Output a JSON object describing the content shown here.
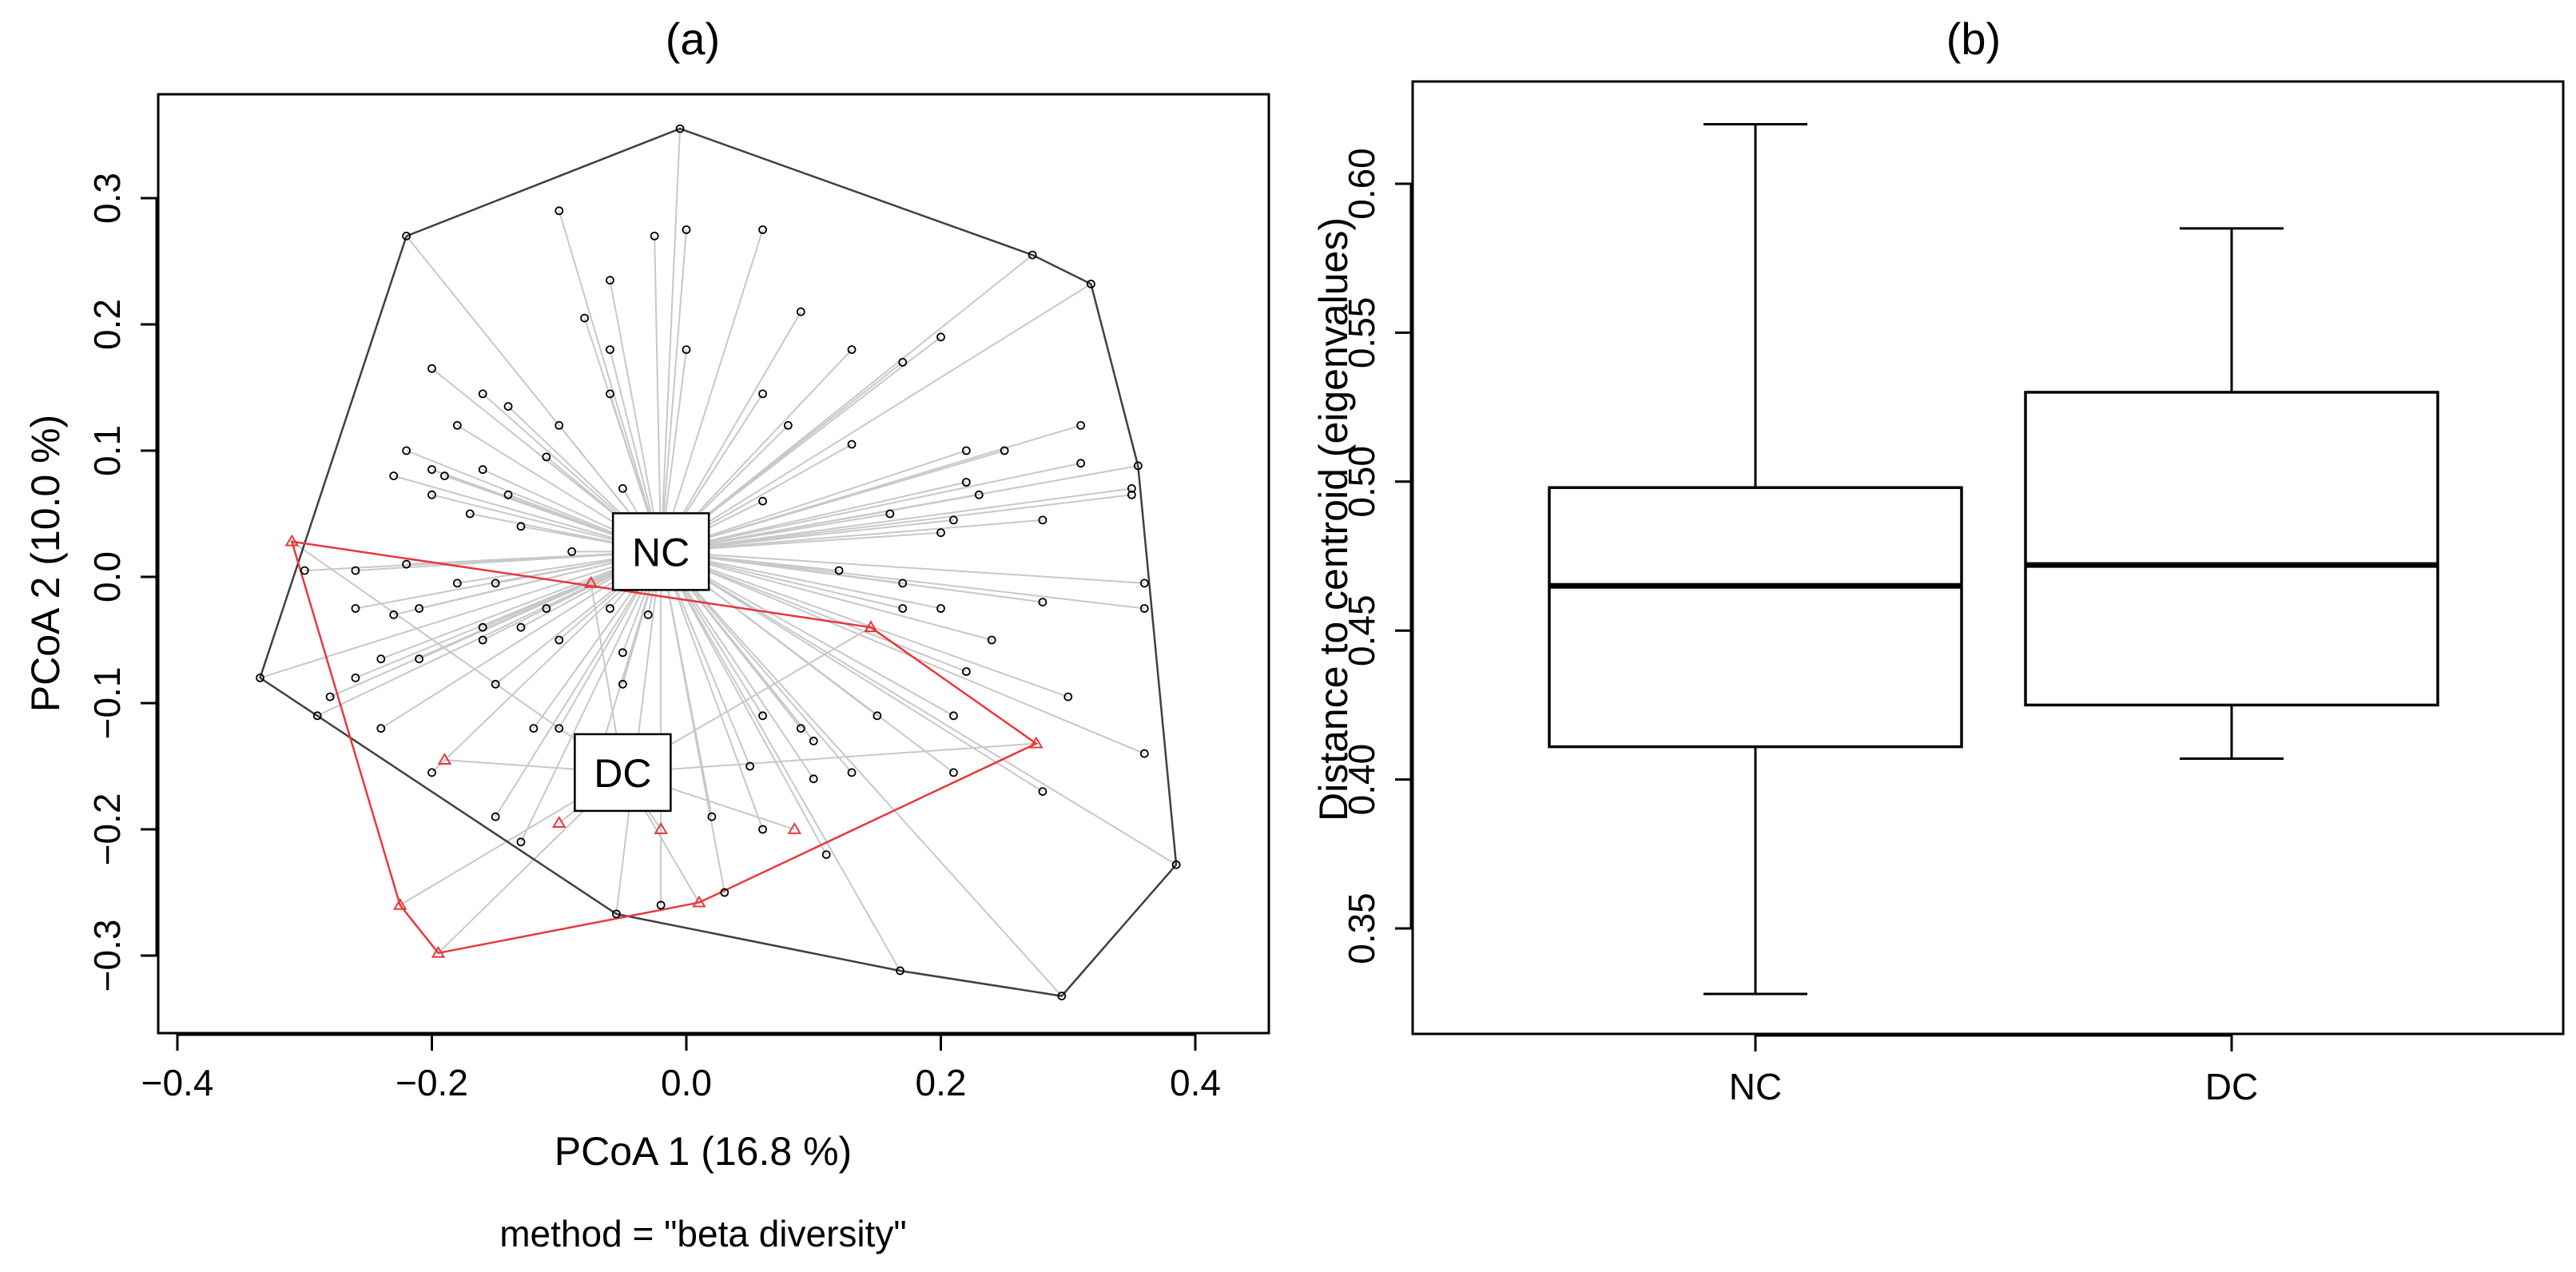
{
  "chart_data": [
    {
      "type": "scatter",
      "panel": "(a)",
      "xlabel": "PCoA 1 (16.8 %)",
      "ylabel": "PCoA 2  (10.0 %)",
      "subtitle": "method = \"beta diversity\"",
      "xlim": [
        -0.4,
        0.4
      ],
      "ylim": [
        -0.33,
        0.35
      ],
      "xticks": [
        "-0.4",
        "-0.2",
        "0.0",
        "0.2",
        "0.4"
      ],
      "xtick_values": [
        -0.4,
        -0.2,
        0.0,
        0.2,
        0.4
      ],
      "yticks": [
        "-0.3",
        "-0.2",
        "-0.1",
        "0.0",
        "0.1",
        "0.2",
        "0.3"
      ],
      "ytick_values": [
        -0.3,
        -0.2,
        -0.1,
        0.0,
        0.1,
        0.2,
        0.3
      ],
      "groups": [
        {
          "name": "NC",
          "label": "NC",
          "color": "#000000",
          "marker": "circle",
          "centroid": [
            -0.02,
            0.02
          ],
          "hull": [
            [
              -0.005,
              0.355
            ],
            [
              0.272,
              0.255
            ],
            [
              0.318,
              0.232
            ],
            [
              0.355,
              0.088
            ],
            [
              0.385,
              -0.228
            ],
            [
              0.295,
              -0.332
            ],
            [
              0.168,
              -0.312
            ],
            [
              -0.055,
              -0.267
            ],
            [
              -0.335,
              -0.08
            ],
            [
              -0.22,
              0.27
            ]
          ],
          "points": [
            [
              -0.005,
              0.355
            ],
            [
              0.272,
              0.255
            ],
            [
              0.318,
              0.232
            ],
            [
              0.355,
              0.088
            ],
            [
              0.385,
              -0.228
            ],
            [
              0.295,
              -0.332
            ],
            [
              0.168,
              -0.312
            ],
            [
              -0.055,
              -0.267
            ],
            [
              -0.335,
              -0.08
            ],
            [
              -0.22,
              0.27
            ],
            [
              -0.1,
              0.29
            ],
            [
              -0.06,
              0.235
            ],
            [
              -0.025,
              0.27
            ],
            [
              0.0,
              0.275
            ],
            [
              0.06,
              0.275
            ],
            [
              -0.08,
              0.205
            ],
            [
              0.09,
              0.21
            ],
            [
              -0.06,
              0.18
            ],
            [
              0.0,
              0.18
            ],
            [
              0.13,
              0.18
            ],
            [
              0.2,
              0.19
            ],
            [
              0.17,
              0.17
            ],
            [
              -0.2,
              0.165
            ],
            [
              -0.16,
              0.145
            ],
            [
              -0.06,
              0.145
            ],
            [
              0.06,
              0.145
            ],
            [
              -0.14,
              0.135
            ],
            [
              -0.18,
              0.12
            ],
            [
              -0.1,
              0.12
            ],
            [
              0.08,
              0.12
            ],
            [
              -0.22,
              0.1
            ],
            [
              -0.2,
              0.085
            ],
            [
              -0.16,
              0.085
            ],
            [
              -0.11,
              0.095
            ],
            [
              0.13,
              0.105
            ],
            [
              0.22,
              0.1
            ],
            [
              0.25,
              0.1
            ],
            [
              0.31,
              0.12
            ],
            [
              0.31,
              0.09
            ],
            [
              0.35,
              0.07
            ],
            [
              -0.23,
              0.08
            ],
            [
              -0.19,
              0.08
            ],
            [
              -0.14,
              0.065
            ],
            [
              -0.05,
              0.07
            ],
            [
              0.06,
              0.06
            ],
            [
              0.22,
              0.075
            ],
            [
              0.21,
              0.045
            ],
            [
              0.23,
              0.065
            ],
            [
              -0.2,
              0.065
            ],
            [
              -0.17,
              0.05
            ],
            [
              -0.13,
              0.04
            ],
            [
              -0.09,
              0.02
            ],
            [
              0.16,
              0.05
            ],
            [
              0.2,
              0.035
            ],
            [
              0.28,
              0.045
            ],
            [
              0.35,
              0.065
            ],
            [
              -0.3,
              0.005
            ],
            [
              -0.26,
              0.005
            ],
            [
              -0.22,
              0.01
            ],
            [
              -0.18,
              -0.005
            ],
            [
              -0.15,
              -0.005
            ],
            [
              -0.21,
              -0.025
            ],
            [
              -0.16,
              -0.04
            ],
            [
              -0.13,
              -0.04
            ],
            [
              -0.11,
              -0.025
            ],
            [
              -0.06,
              -0.025
            ],
            [
              -0.03,
              -0.03
            ],
            [
              0.12,
              0.005
            ],
            [
              0.17,
              -0.005
            ],
            [
              0.2,
              -0.025
            ],
            [
              0.28,
              -0.02
            ],
            [
              -0.26,
              -0.025
            ],
            [
              -0.23,
              -0.03
            ],
            [
              -0.28,
              -0.095
            ],
            [
              -0.26,
              -0.08
            ],
            [
              -0.24,
              -0.065
            ],
            [
              -0.21,
              -0.065
            ],
            [
              -0.16,
              -0.05
            ],
            [
              -0.1,
              -0.05
            ],
            [
              -0.05,
              -0.06
            ],
            [
              0.17,
              -0.025
            ],
            [
              0.24,
              -0.05
            ],
            [
              0.22,
              -0.075
            ],
            [
              0.36,
              -0.005
            ],
            [
              0.36,
              -0.025
            ],
            [
              -0.29,
              -0.11
            ],
            [
              -0.24,
              -0.12
            ],
            [
              -0.15,
              -0.085
            ],
            [
              -0.1,
              -0.12
            ],
            [
              -0.05,
              -0.085
            ],
            [
              0.06,
              -0.11
            ],
            [
              0.09,
              -0.12
            ],
            [
              0.1,
              -0.13
            ],
            [
              0.15,
              -0.11
            ],
            [
              0.21,
              -0.11
            ],
            [
              0.3,
              -0.095
            ],
            [
              0.36,
              -0.14
            ],
            [
              -0.2,
              -0.155
            ],
            [
              -0.12,
              -0.12
            ],
            [
              0.05,
              -0.15
            ],
            [
              0.1,
              -0.16
            ],
            [
              0.13,
              -0.155
            ],
            [
              0.21,
              -0.155
            ],
            [
              0.28,
              -0.17
            ],
            [
              -0.15,
              -0.19
            ],
            [
              -0.08,
              -0.18
            ],
            [
              0.02,
              -0.19
            ],
            [
              0.06,
              -0.2
            ],
            [
              -0.13,
              -0.21
            ],
            [
              0.11,
              -0.22
            ],
            [
              0.03,
              -0.25
            ],
            [
              -0.02,
              -0.26
            ]
          ]
        },
        {
          "name": "DC",
          "label": "DC",
          "color": "#e8383b",
          "marker": "triangle",
          "centroid": [
            -0.05,
            -0.155
          ],
          "hull": [
            [
              -0.31,
              0.028
            ],
            [
              0.145,
              -0.04
            ],
            [
              0.275,
              -0.132
            ],
            [
              0.01,
              -0.258
            ],
            [
              -0.195,
              -0.298
            ],
            [
              -0.225,
              -0.26
            ]
          ],
          "points": [
            [
              -0.31,
              0.028
            ],
            [
              0.145,
              -0.04
            ],
            [
              0.275,
              -0.132
            ],
            [
              0.01,
              -0.258
            ],
            [
              -0.195,
              -0.298
            ],
            [
              -0.225,
              -0.26
            ],
            [
              -0.075,
              -0.005
            ],
            [
              -0.19,
              -0.145
            ],
            [
              -0.1,
              -0.195
            ],
            [
              -0.02,
              -0.2
            ],
            [
              0.085,
              -0.2
            ]
          ]
        }
      ]
    },
    {
      "type": "box",
      "panel": "(b)",
      "xlabel": "",
      "ylabel": "Distance to centroid (eigenvalues)",
      "ylim": [
        0.315,
        0.625
      ],
      "yticks": [
        "0.35",
        "0.40",
        "0.45",
        "0.50",
        "0.55",
        "0.60"
      ],
      "ytick_values": [
        0.35,
        0.4,
        0.45,
        0.5,
        0.55,
        0.6
      ],
      "categories": [
        "NC",
        "DC"
      ],
      "boxes": [
        {
          "name": "NC",
          "whisker_low": 0.328,
          "q1": 0.411,
          "median": 0.465,
          "q3": 0.498,
          "whisker_high": 0.62
        },
        {
          "name": "DC",
          "whisker_low": 0.407,
          "q1": 0.425,
          "median": 0.472,
          "q3": 0.53,
          "whisker_high": 0.585
        }
      ]
    }
  ]
}
